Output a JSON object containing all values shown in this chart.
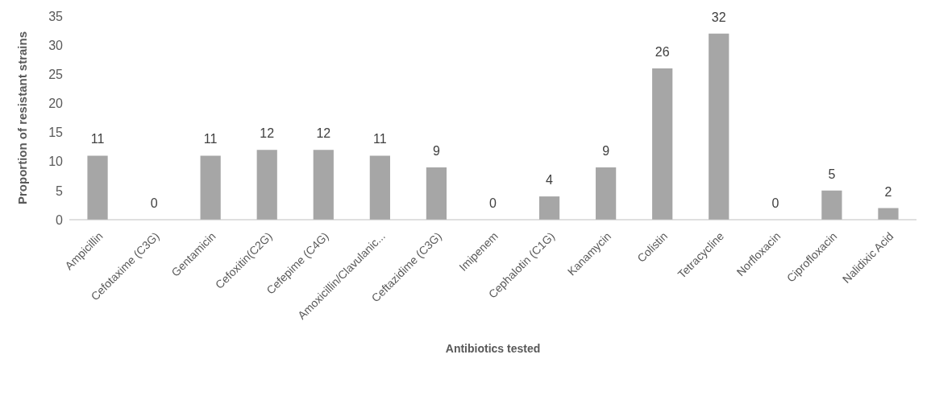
{
  "chart_data": {
    "type": "bar",
    "xlabel": "Antibiotics tested",
    "ylabel": "Proportion of resistant strains",
    "categories": [
      "Ampicillin",
      "Cefotaxime (C3G)",
      "Gentamicin",
      "Cefoxitin(C2G)",
      "Cefepime (C4G)",
      "Amoxicillin/Clavulanic...",
      "Ceftazidime (C3G)",
      "Imipenem",
      "Cephalotin (C1G)",
      "Kanamycin",
      "Colistin",
      "Tetracycline",
      "Norfloxacin",
      "Ciprofloxacin",
      "Nalidixic Acid"
    ],
    "values": [
      11,
      0,
      11,
      12,
      12,
      11,
      9,
      0,
      4,
      9,
      26,
      32,
      0,
      5,
      2
    ],
    "color": "#a6a6a6",
    "ylim": [
      0,
      35
    ],
    "yticks": [
      0,
      5,
      10,
      15,
      20,
      25,
      30,
      35
    ],
    "grid": false,
    "data_labels": true,
    "legend": false
  }
}
